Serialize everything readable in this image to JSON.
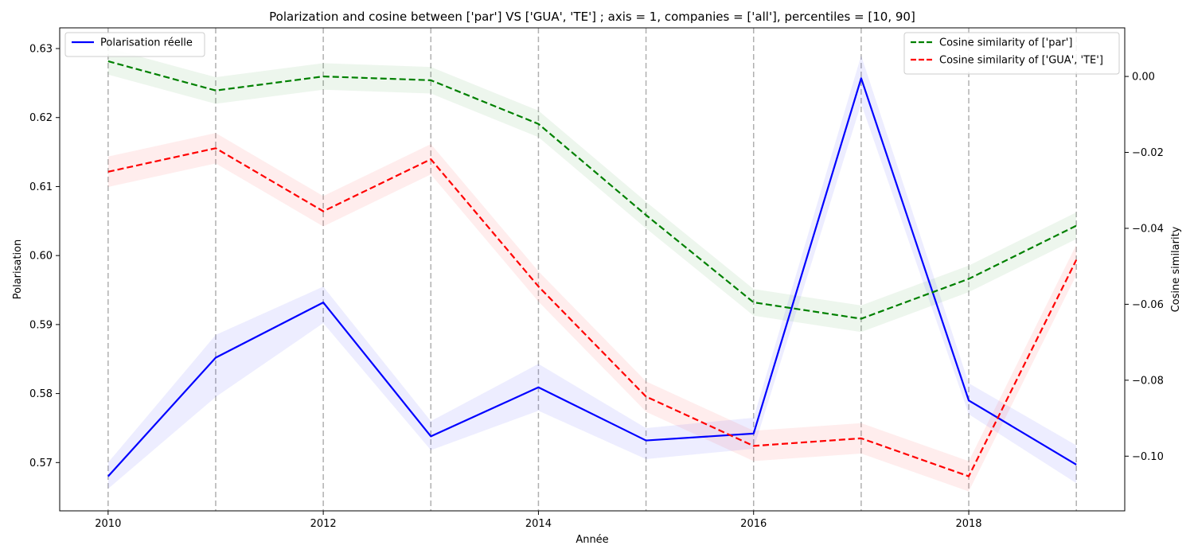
{
  "chart_data": {
    "type": "line",
    "title": "Polarization and cosine between ['par'] VS ['GUA', 'TE'] ; axis = 1, companies = ['all'], percentiles = [10, 90]",
    "xlabel": "Année",
    "ylabel_left": "Polarisation",
    "ylabel_right": "Cosine similarity",
    "x": [
      2010,
      2011,
      2012,
      2013,
      2014,
      2015,
      2016,
      2017,
      2018,
      2019
    ],
    "xlim": [
      2009.55,
      2019.45
    ],
    "x_ticks": [
      2010,
      2012,
      2014,
      2016,
      2018
    ],
    "x_tick_labels": [
      "2010",
      "2012",
      "2014",
      "2016",
      "2018"
    ],
    "ylim_left": [
      0.563,
      0.633
    ],
    "y_ticks_left": [
      0.57,
      0.58,
      0.59,
      0.6,
      0.61,
      0.62,
      0.63
    ],
    "y_tick_labels_left": [
      "0.57",
      "0.58",
      "0.59",
      "0.60",
      "0.61",
      "0.62",
      "0.63"
    ],
    "ylim_right": [
      -0.1144,
      0.0128
    ],
    "y_ticks_right": [
      0.0,
      -0.02,
      -0.04,
      -0.06,
      -0.08,
      -0.1
    ],
    "y_tick_labels_right": [
      "0.00",
      "−0.02",
      "−0.04",
      "−0.06",
      "−0.08",
      "−0.10"
    ],
    "vertical_gridlines_at": [
      2010,
      2011,
      2012,
      2013,
      2014,
      2015,
      2016,
      2017,
      2018,
      2019
    ],
    "series": [
      {
        "name": "Polarisation réelle",
        "axis": "left",
        "color": "#0000ff",
        "style": "solid",
        "values": [
          0.568,
          0.5852,
          0.5932,
          0.5738,
          0.5809,
          0.5732,
          0.5742,
          0.6257,
          0.579,
          0.5697
        ],
        "lower": [
          0.5662,
          0.5795,
          0.5902,
          0.5718,
          0.5775,
          0.5705,
          0.572,
          0.622,
          0.577,
          0.567
        ],
        "upper": [
          0.57,
          0.5885,
          0.5955,
          0.576,
          0.5843,
          0.575,
          0.5765,
          0.629,
          0.5815,
          0.5725
        ]
      },
      {
        "name": "Cosine similarity of ['par']",
        "axis": "right",
        "color": "#008000",
        "style": "dashed",
        "values": [
          0.004,
          -0.0037,
          0.0,
          -0.001,
          -0.0125,
          -0.0365,
          -0.0595,
          -0.0638,
          -0.0533,
          -0.0393
        ],
        "lower": [
          0.0005,
          -0.0072,
          -0.0035,
          -0.0045,
          -0.016,
          -0.04,
          -0.063,
          -0.0673,
          -0.0568,
          -0.0428
        ],
        "upper": [
          0.0075,
          -0.0002,
          0.0035,
          0.0025,
          -0.009,
          -0.033,
          -0.056,
          -0.0603,
          -0.0498,
          -0.0358
        ]
      },
      {
        "name": "Cosine similarity of ['GUA', 'TE']",
        "axis": "right",
        "color": "#ff0000",
        "style": "dashed",
        "values": [
          -0.0251,
          -0.0189,
          -0.0355,
          -0.0218,
          -0.0553,
          -0.0843,
          -0.0973,
          -0.0953,
          -0.1053,
          -0.0483
        ],
        "lower": [
          -0.0291,
          -0.0229,
          -0.0395,
          -0.0258,
          -0.0593,
          -0.0883,
          -0.1013,
          -0.0993,
          -0.1093,
          -0.0523
        ],
        "upper": [
          -0.0211,
          -0.0149,
          -0.0315,
          -0.0178,
          -0.0513,
          -0.0803,
          -0.0933,
          -0.0913,
          -0.1013,
          -0.0443
        ]
      }
    ],
    "legend_left": {
      "placement": "top-left",
      "entries": [
        "Polarisation réelle"
      ]
    },
    "legend_right": {
      "placement": "top-right",
      "entries": [
        "Cosine similarity of ['par']",
        "Cosine similarity of ['GUA', 'TE']"
      ]
    }
  }
}
